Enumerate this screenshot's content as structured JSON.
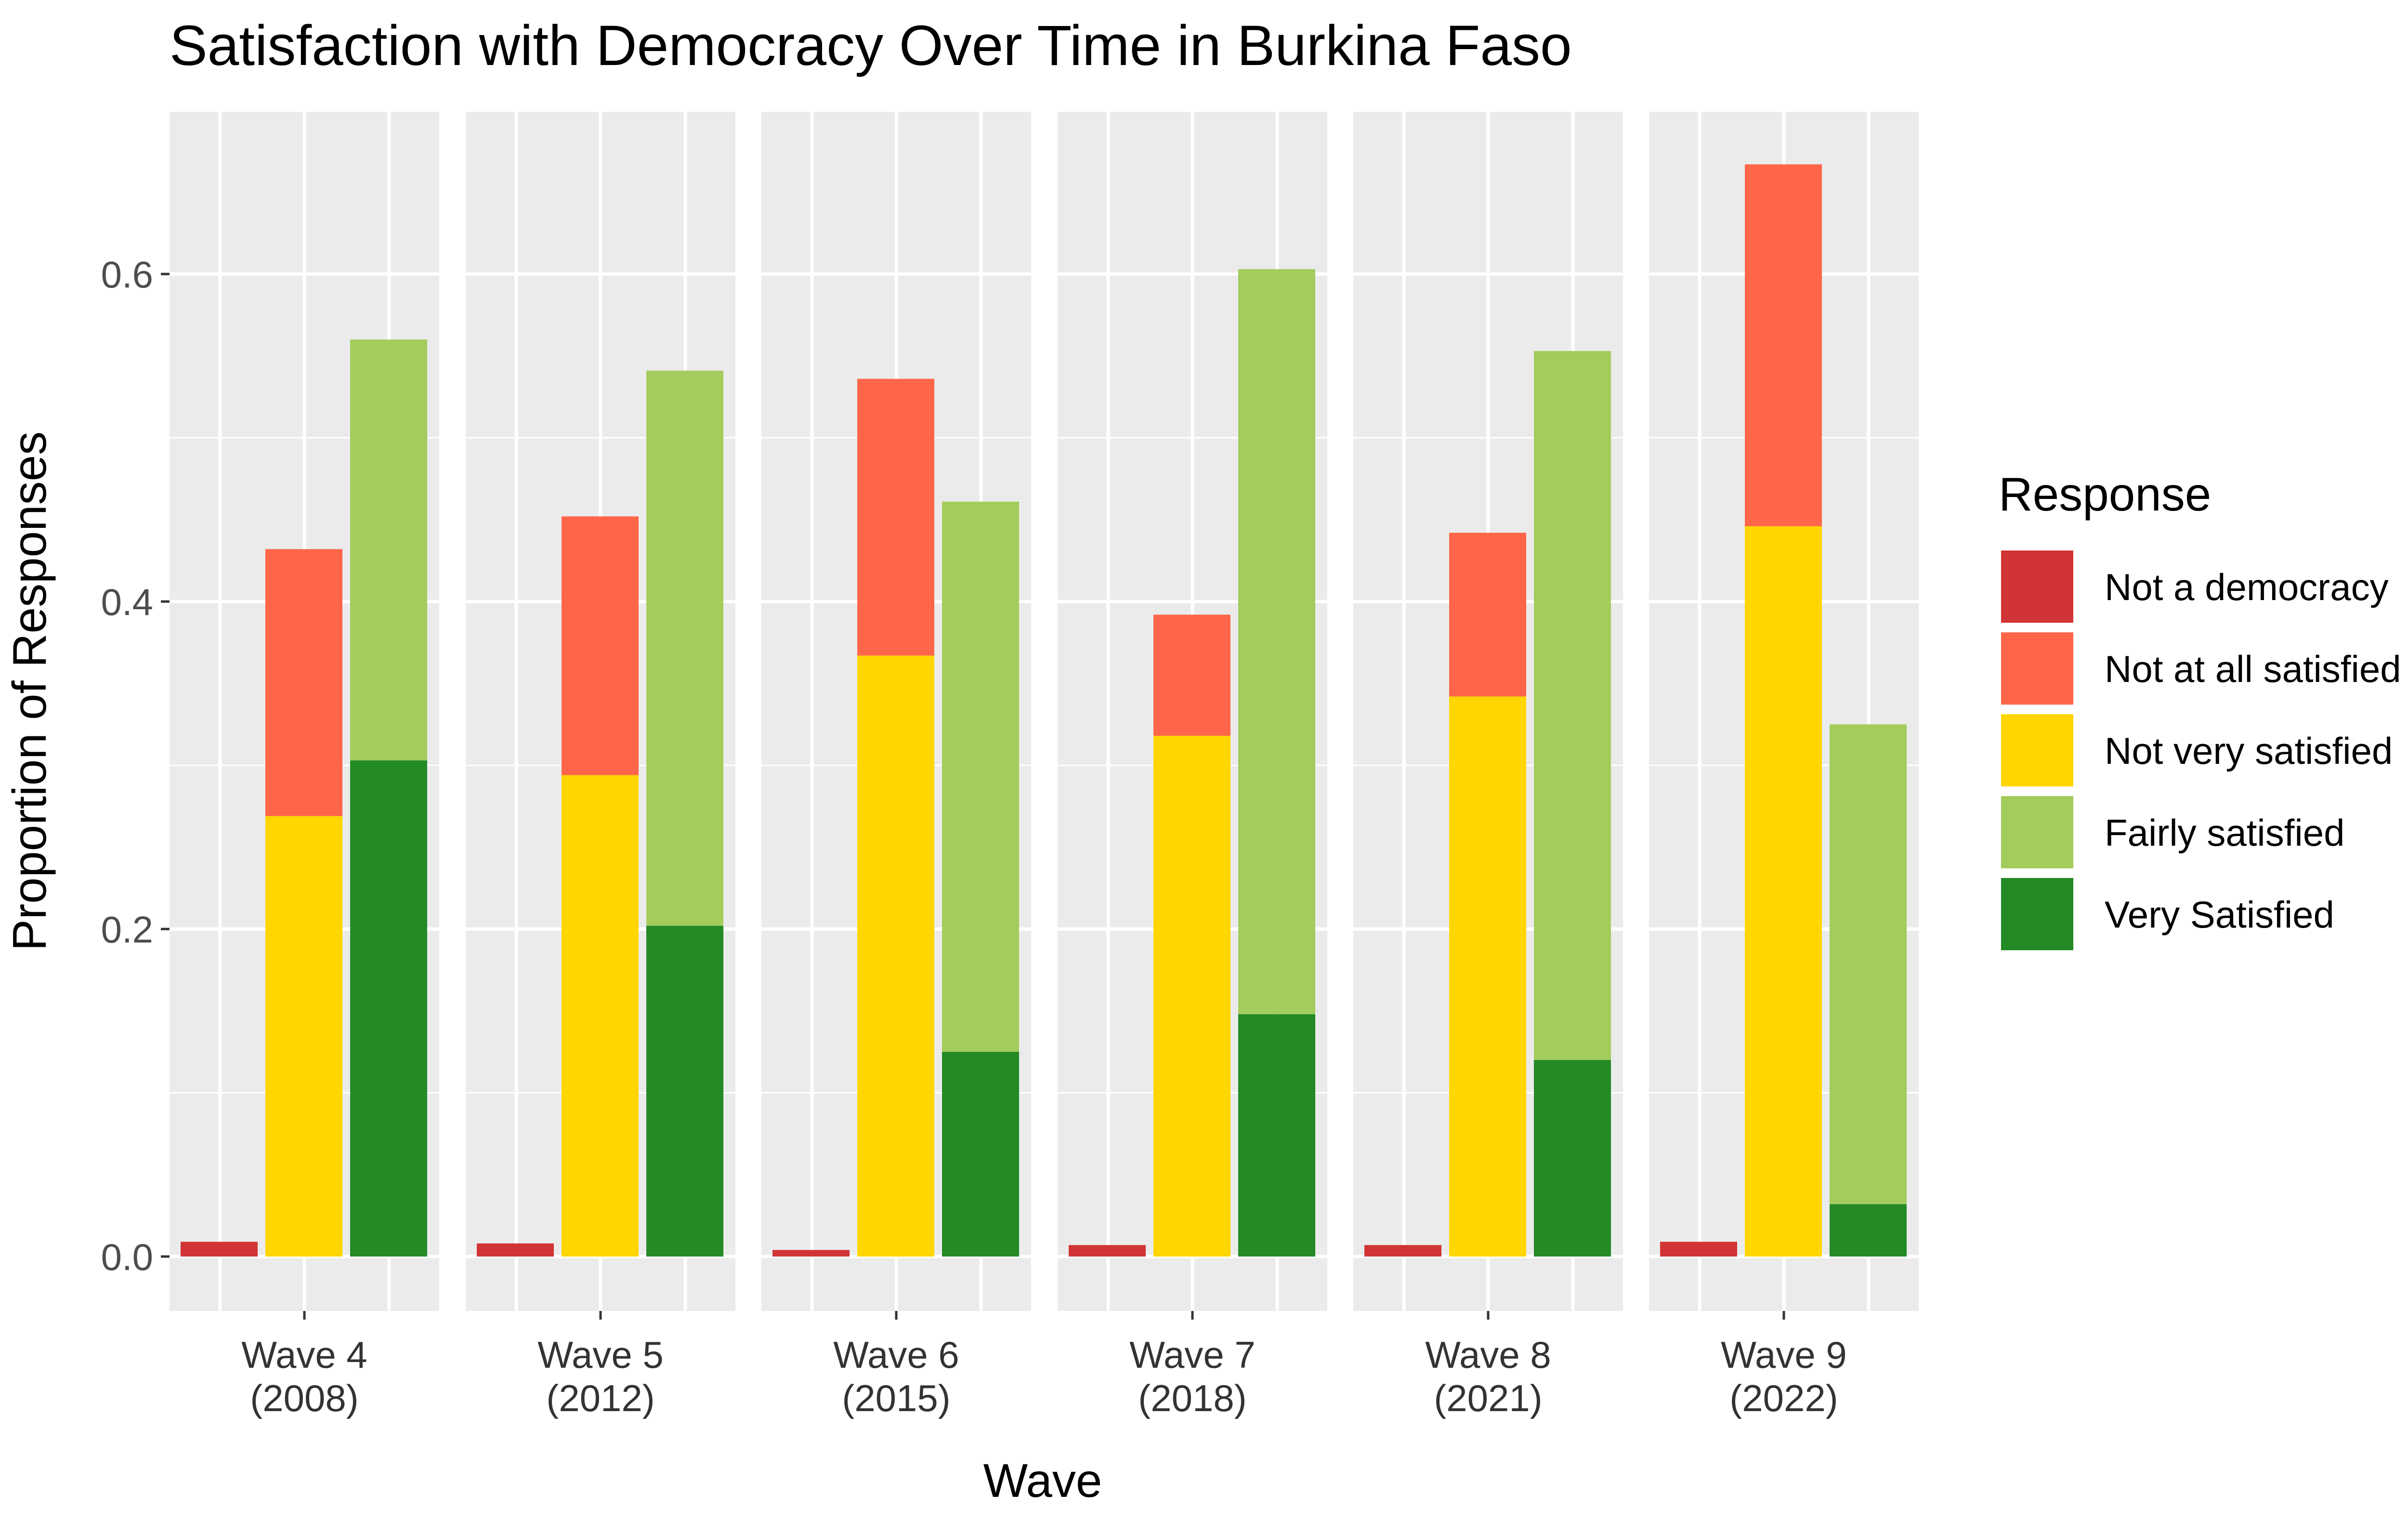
{
  "chart_data": {
    "type": "bar",
    "title": "Satisfaction with Democracy Over Time in Burkina Faso",
    "xlabel": "Wave",
    "ylabel": "Proportion of Responses",
    "ylim": [
      -0.034,
      0.7
    ],
    "yticks": [
      0.0,
      0.2,
      0.4,
      0.6
    ],
    "ytick_labels": [
      "0.0",
      "0.2",
      "0.4",
      "0.6"
    ],
    "grid": true,
    "legend": {
      "title": "Response",
      "position": "right",
      "entries": [
        {
          "label": "Not a democracy",
          "color": "#D13434"
        },
        {
          "label": "Not at all satisfied",
          "color": "#FF6649"
        },
        {
          "label": "Not very satisfied",
          "color": "#FFD600"
        },
        {
          "label": "Fairly satisfied",
          "color": "#A3CC5C"
        },
        {
          "label": "Very Satisfied",
          "color": "#238A25"
        }
      ]
    },
    "facets": [
      {
        "label": "Wave 4",
        "year": "(2008)",
        "not_a_democracy": 0.009,
        "not_at_all_satisfied": 0.163,
        "not_very_satisfied": 0.269,
        "fairly_satisfied": 0.257,
        "very_satisfied": 0.303
      },
      {
        "label": "Wave 5",
        "year": "(2012)",
        "not_a_democracy": 0.008,
        "not_at_all_satisfied": 0.158,
        "not_very_satisfied": 0.294,
        "fairly_satisfied": 0.339,
        "very_satisfied": 0.202
      },
      {
        "label": "Wave 6",
        "year": "(2015)",
        "not_a_democracy": 0.004,
        "not_at_all_satisfied": 0.169,
        "not_very_satisfied": 0.367,
        "fairly_satisfied": 0.336,
        "very_satisfied": 0.125
      },
      {
        "label": "Wave 7",
        "year": "(2018)",
        "not_a_democracy": 0.007,
        "not_at_all_satisfied": 0.074,
        "not_very_satisfied": 0.318,
        "fairly_satisfied": 0.455,
        "very_satisfied": 0.148
      },
      {
        "label": "Wave 8",
        "year": "(2021)",
        "not_a_democracy": 0.007,
        "not_at_all_satisfied": 0.1,
        "not_very_satisfied": 0.342,
        "fairly_satisfied": 0.433,
        "very_satisfied": 0.12
      },
      {
        "label": "Wave 9",
        "year": "(2022)",
        "not_a_democracy": 0.009,
        "not_at_all_satisfied": 0.221,
        "not_very_satisfied": 0.446,
        "fairly_satisfied": 0.293,
        "very_satisfied": 0.032
      }
    ]
  }
}
